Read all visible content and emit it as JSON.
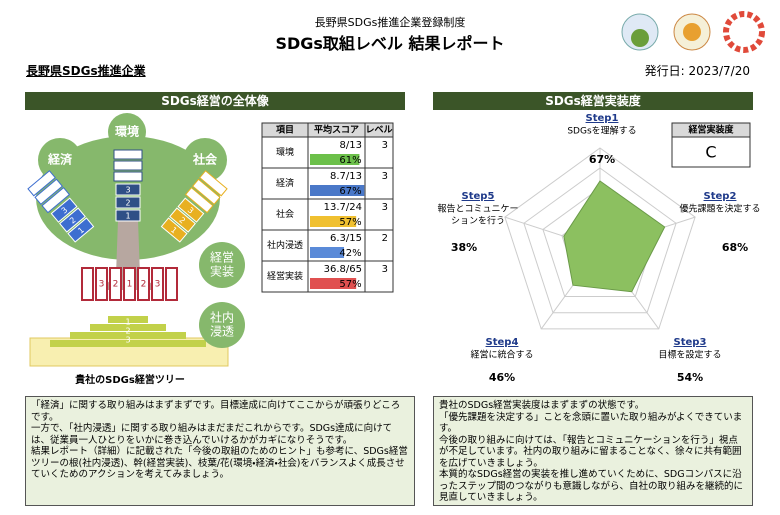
{
  "header": {
    "program": "長野県SDGs推進企業登録制度",
    "title": "SDGs取組レベル 結果レポート",
    "company": "長野県SDGs推進企業",
    "issued": "発行日: 2023/7/20"
  },
  "left": {
    "heading": "SDGs経営の全体像",
    "tree": {
      "environment": "環境",
      "economy": "経済",
      "society": "社会",
      "implementation": "経営実装",
      "penetration": "社内浸透",
      "caption": "貴社のSDGs経営ツリー",
      "env_levels": [
        3,
        2,
        1
      ],
      "eco_levels": [
        3,
        2,
        1
      ],
      "soc_levels": [
        3,
        2,
        1
      ],
      "root_levels": [
        3,
        2,
        1,
        2,
        3
      ],
      "base_levels": [
        1,
        2,
        3
      ]
    },
    "table": {
      "header": [
        "項目",
        "平均スコア",
        "レベル"
      ],
      "rows": [
        {
          "item": "環境",
          "score": "8/13",
          "level": 3,
          "bar": 61,
          "bar_label": "61%",
          "color": "#6cc04a"
        },
        {
          "item": "経済",
          "score": "8.7/13",
          "level": 3,
          "bar": 67,
          "bar_label": "67%",
          "color": "#4a78c8"
        },
        {
          "item": "社会",
          "score": "13.7/24",
          "level": 3,
          "bar": 57,
          "bar_label": "57%",
          "color": "#f0c030"
        },
        {
          "item": "社内浸透",
          "score": "6.3/15",
          "level": 2,
          "bar": 42,
          "bar_label": "42%",
          "color": "#5a8ad8"
        },
        {
          "item": "経営実装",
          "score": "36.8/65",
          "level": 3,
          "bar": 57,
          "bar_label": "57%",
          "color": "#e05050"
        }
      ]
    },
    "comment": [
      "「経済」に関する取り組みはまずまずです。目標達成に向けてここからが頑張りどころです。",
      "一方で、「社内浸透」に関する取り組みはまだまだこれからです。SDGs達成に向けては、従業員一人ひとりをいかに巻き込んでいけるかがカギになりそうです。",
      "結果レポート（詳細）に記載された「今後の取組のためのヒント」も参考に、SDGs経営ツリーの根(社内浸透)、幹(経営実装)、枝葉/花(環境・経済・社会)をバランスよく成長させていくためのアクションを考えてみましょう。"
    ]
  },
  "right": {
    "heading": "SDGs経営実装度",
    "grade_label": "経営実装度",
    "grade": "C",
    "steps": [
      {
        "step": "Step1",
        "desc": "SDGsを理解する",
        "value": 67,
        "label": "67%"
      },
      {
        "step": "Step2",
        "desc": "優先課題を決定する",
        "value": 68,
        "label": "68%"
      },
      {
        "step": "Step3",
        "desc": "目標を設定する",
        "value": 54,
        "label": "54%"
      },
      {
        "step": "Step4",
        "desc": "経営に統合する",
        "value": 46,
        "label": "46%"
      },
      {
        "step": "Step5",
        "desc": "報告とコミュニケーションを行う",
        "value": 38,
        "label": "38%"
      }
    ],
    "comment": [
      "貴社のSDGs経営実装度はまずまずの状態です。",
      "「優先課題を決定する」ことを念頭に置いた取り組みがよくできています。",
      "今後の取り組みに向けては、「報告とコミュニケーションを行う」視点が不足しています。社内の取り組みに留まることなく、徐々に共有範囲を広げていきましょう。",
      "本質的なSDGs経営の実装を推し進めていくために、SDGコンパスに沿ったステップ間のつながりも意識しながら、自社の取り組みを継続的に見直していきましょう。"
    ]
  }
}
